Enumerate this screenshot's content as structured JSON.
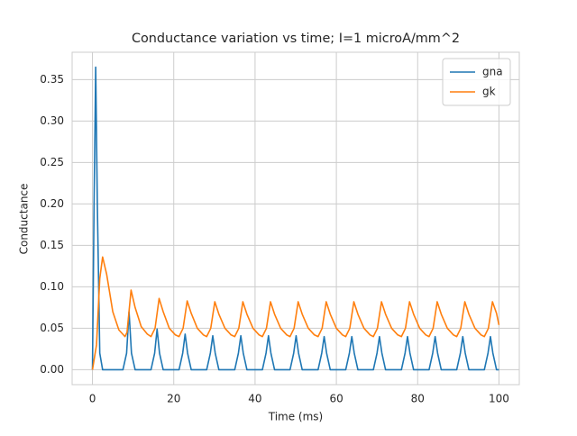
{
  "chart_data": {
    "type": "line",
    "title": "Conductance variation vs time; I=1 microA/mm^2",
    "x_label": "Time (ms)",
    "y_label": "Conductance",
    "xlim": [
      -5,
      105
    ],
    "ylim": [
      -0.018,
      0.383
    ],
    "xticks": [
      0,
      20,
      40,
      60,
      80,
      100
    ],
    "yticks": [
      {
        "value": 0,
        "label": "0.00"
      },
      {
        "value": 0.05,
        "label": "0.05"
      },
      {
        "value": 0.1,
        "label": "0.10"
      },
      {
        "value": 0.15,
        "label": "0.15"
      },
      {
        "value": 0.2,
        "label": "0.20"
      },
      {
        "value": 0.25,
        "label": "0.25"
      },
      {
        "value": 0.3,
        "label": "0.30"
      },
      {
        "value": 0.35,
        "label": "0.35"
      }
    ],
    "grid": true,
    "legend": "upper right",
    "series": [
      {
        "name": "gna",
        "color": "#1f77b4",
        "x": [
          0,
          0.4,
          0.8,
          1.2,
          1.8,
          2.5,
          7.5,
          8.4,
          9.0,
          9.6,
          10.5,
          14.4,
          15.3,
          15.9,
          16.5,
          17.4,
          21.3,
          22.2,
          22.8,
          23.4,
          24.3,
          28.1,
          29.0,
          29.6,
          30.2,
          31.1,
          35.0,
          35.9,
          36.5,
          37.1,
          38.0,
          41.8,
          42.7,
          43.3,
          43.9,
          44.8,
          48.6,
          49.5,
          50.1,
          50.7,
          51.6,
          55.5,
          56.4,
          57.0,
          57.6,
          58.5,
          62.3,
          63.2,
          63.8,
          64.4,
          65.3,
          69.1,
          70.0,
          70.6,
          71.2,
          72.1,
          76.0,
          76.9,
          77.5,
          78.1,
          79.0,
          82.8,
          83.7,
          84.3,
          84.9,
          85.8,
          89.6,
          90.5,
          91.1,
          91.7,
          92.6,
          96.4,
          97.3,
          97.9,
          98.5,
          99.4,
          100
        ],
        "values": [
          0,
          0.2,
          0.365,
          0.2,
          0.02,
          0,
          0,
          0.02,
          0.07,
          0.02,
          0,
          0,
          0.02,
          0.049,
          0.02,
          0,
          0,
          0.02,
          0.043,
          0.02,
          0,
          0,
          0.02,
          0.041,
          0.02,
          0,
          0,
          0.02,
          0.041,
          0.02,
          0,
          0,
          0.02,
          0.041,
          0.02,
          0,
          0,
          0.02,
          0.041,
          0.02,
          0,
          0,
          0.02,
          0.04,
          0.02,
          0,
          0,
          0.02,
          0.04,
          0.02,
          0,
          0,
          0.02,
          0.04,
          0.02,
          0,
          0,
          0.02,
          0.04,
          0.02,
          0,
          0,
          0.02,
          0.04,
          0.02,
          0,
          0,
          0.02,
          0.04,
          0.02,
          0,
          0,
          0.02,
          0.04,
          0.02,
          0,
          0
        ]
      },
      {
        "name": "gk",
        "color": "#ff7f0e",
        "x": [
          0,
          1,
          1.8,
          2.5,
          3.5,
          5,
          6.5,
          8,
          8.5,
          9.5,
          10.5,
          12,
          13.5,
          14.4,
          15.4,
          16.4,
          17.4,
          18.9,
          20.4,
          21.3,
          22.3,
          23.3,
          24.3,
          25.8,
          27.3,
          28.1,
          29.1,
          30.1,
          31.1,
          32.6,
          34.1,
          35.0,
          36.0,
          37.0,
          38.0,
          39.5,
          41.0,
          41.8,
          42.8,
          43.8,
          44.8,
          46.3,
          47.8,
          48.6,
          49.6,
          50.6,
          51.6,
          53.1,
          54.6,
          55.5,
          56.5,
          57.5,
          58.5,
          60.0,
          61.5,
          62.3,
          63.3,
          64.3,
          65.3,
          66.8,
          68.3,
          69.1,
          70.1,
          71.1,
          72.1,
          73.6,
          75.1,
          76.0,
          77.0,
          78.0,
          79.0,
          80.5,
          82.0,
          82.8,
          83.8,
          84.8,
          85.8,
          87.3,
          88.8,
          89.6,
          90.6,
          91.6,
          92.6,
          94.1,
          95.6,
          96.4,
          97.4,
          98.4,
          99.4,
          100
        ],
        "values": [
          0,
          0.03,
          0.11,
          0.136,
          0.115,
          0.07,
          0.048,
          0.04,
          0.045,
          0.096,
          0.075,
          0.052,
          0.043,
          0.04,
          0.05,
          0.086,
          0.07,
          0.05,
          0.042,
          0.04,
          0.05,
          0.083,
          0.068,
          0.05,
          0.042,
          0.04,
          0.05,
          0.082,
          0.067,
          0.05,
          0.042,
          0.04,
          0.05,
          0.082,
          0.067,
          0.05,
          0.042,
          0.04,
          0.05,
          0.082,
          0.067,
          0.05,
          0.042,
          0.04,
          0.05,
          0.082,
          0.067,
          0.05,
          0.042,
          0.04,
          0.05,
          0.082,
          0.067,
          0.05,
          0.042,
          0.04,
          0.05,
          0.082,
          0.067,
          0.05,
          0.042,
          0.04,
          0.05,
          0.082,
          0.067,
          0.05,
          0.042,
          0.04,
          0.05,
          0.082,
          0.067,
          0.05,
          0.042,
          0.04,
          0.05,
          0.082,
          0.067,
          0.05,
          0.042,
          0.04,
          0.05,
          0.082,
          0.067,
          0.05,
          0.042,
          0.04,
          0.05,
          0.082,
          0.068,
          0.054
        ]
      }
    ]
  }
}
